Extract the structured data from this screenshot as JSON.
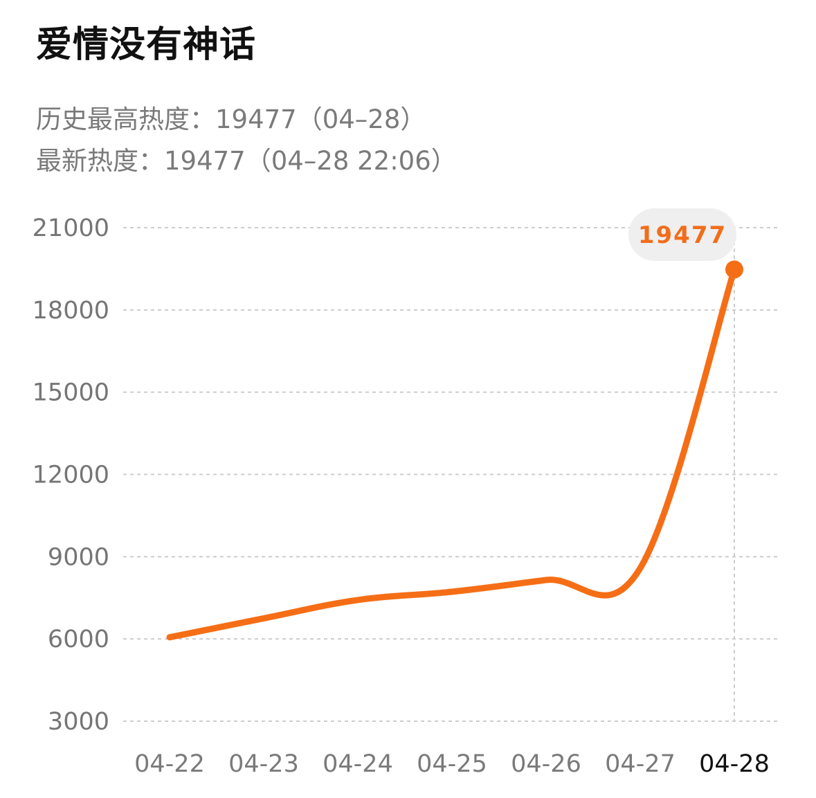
{
  "header": {
    "title": "爱情没有神话",
    "peak_label": "历史最高热度：",
    "peak_value": "19477",
    "peak_date": "（04–28）",
    "latest_label": "最新热度：",
    "latest_value": "19477",
    "latest_date": "（04–28 22:06）"
  },
  "colors": {
    "line": "#f56e16",
    "grid": "#cccccc",
    "bubble_bg": "#efefef",
    "bubble_text": "#f16d1b"
  },
  "chart_data": {
    "type": "line",
    "categories": [
      "04-22",
      "04-23",
      "04-24",
      "04-25",
      "04-26",
      "04-27",
      "04-28"
    ],
    "series": [
      {
        "values": [
          6060,
          6750,
          7420,
          7720,
          8150,
          8580,
          19477
        ]
      }
    ],
    "ylim": [
      3000,
      21000
    ],
    "yticks": [
      21000,
      18000,
      15000,
      12000,
      9000,
      6000,
      3000
    ],
    "grid": true,
    "highlight": {
      "category": "04-28",
      "label": "19477"
    }
  }
}
